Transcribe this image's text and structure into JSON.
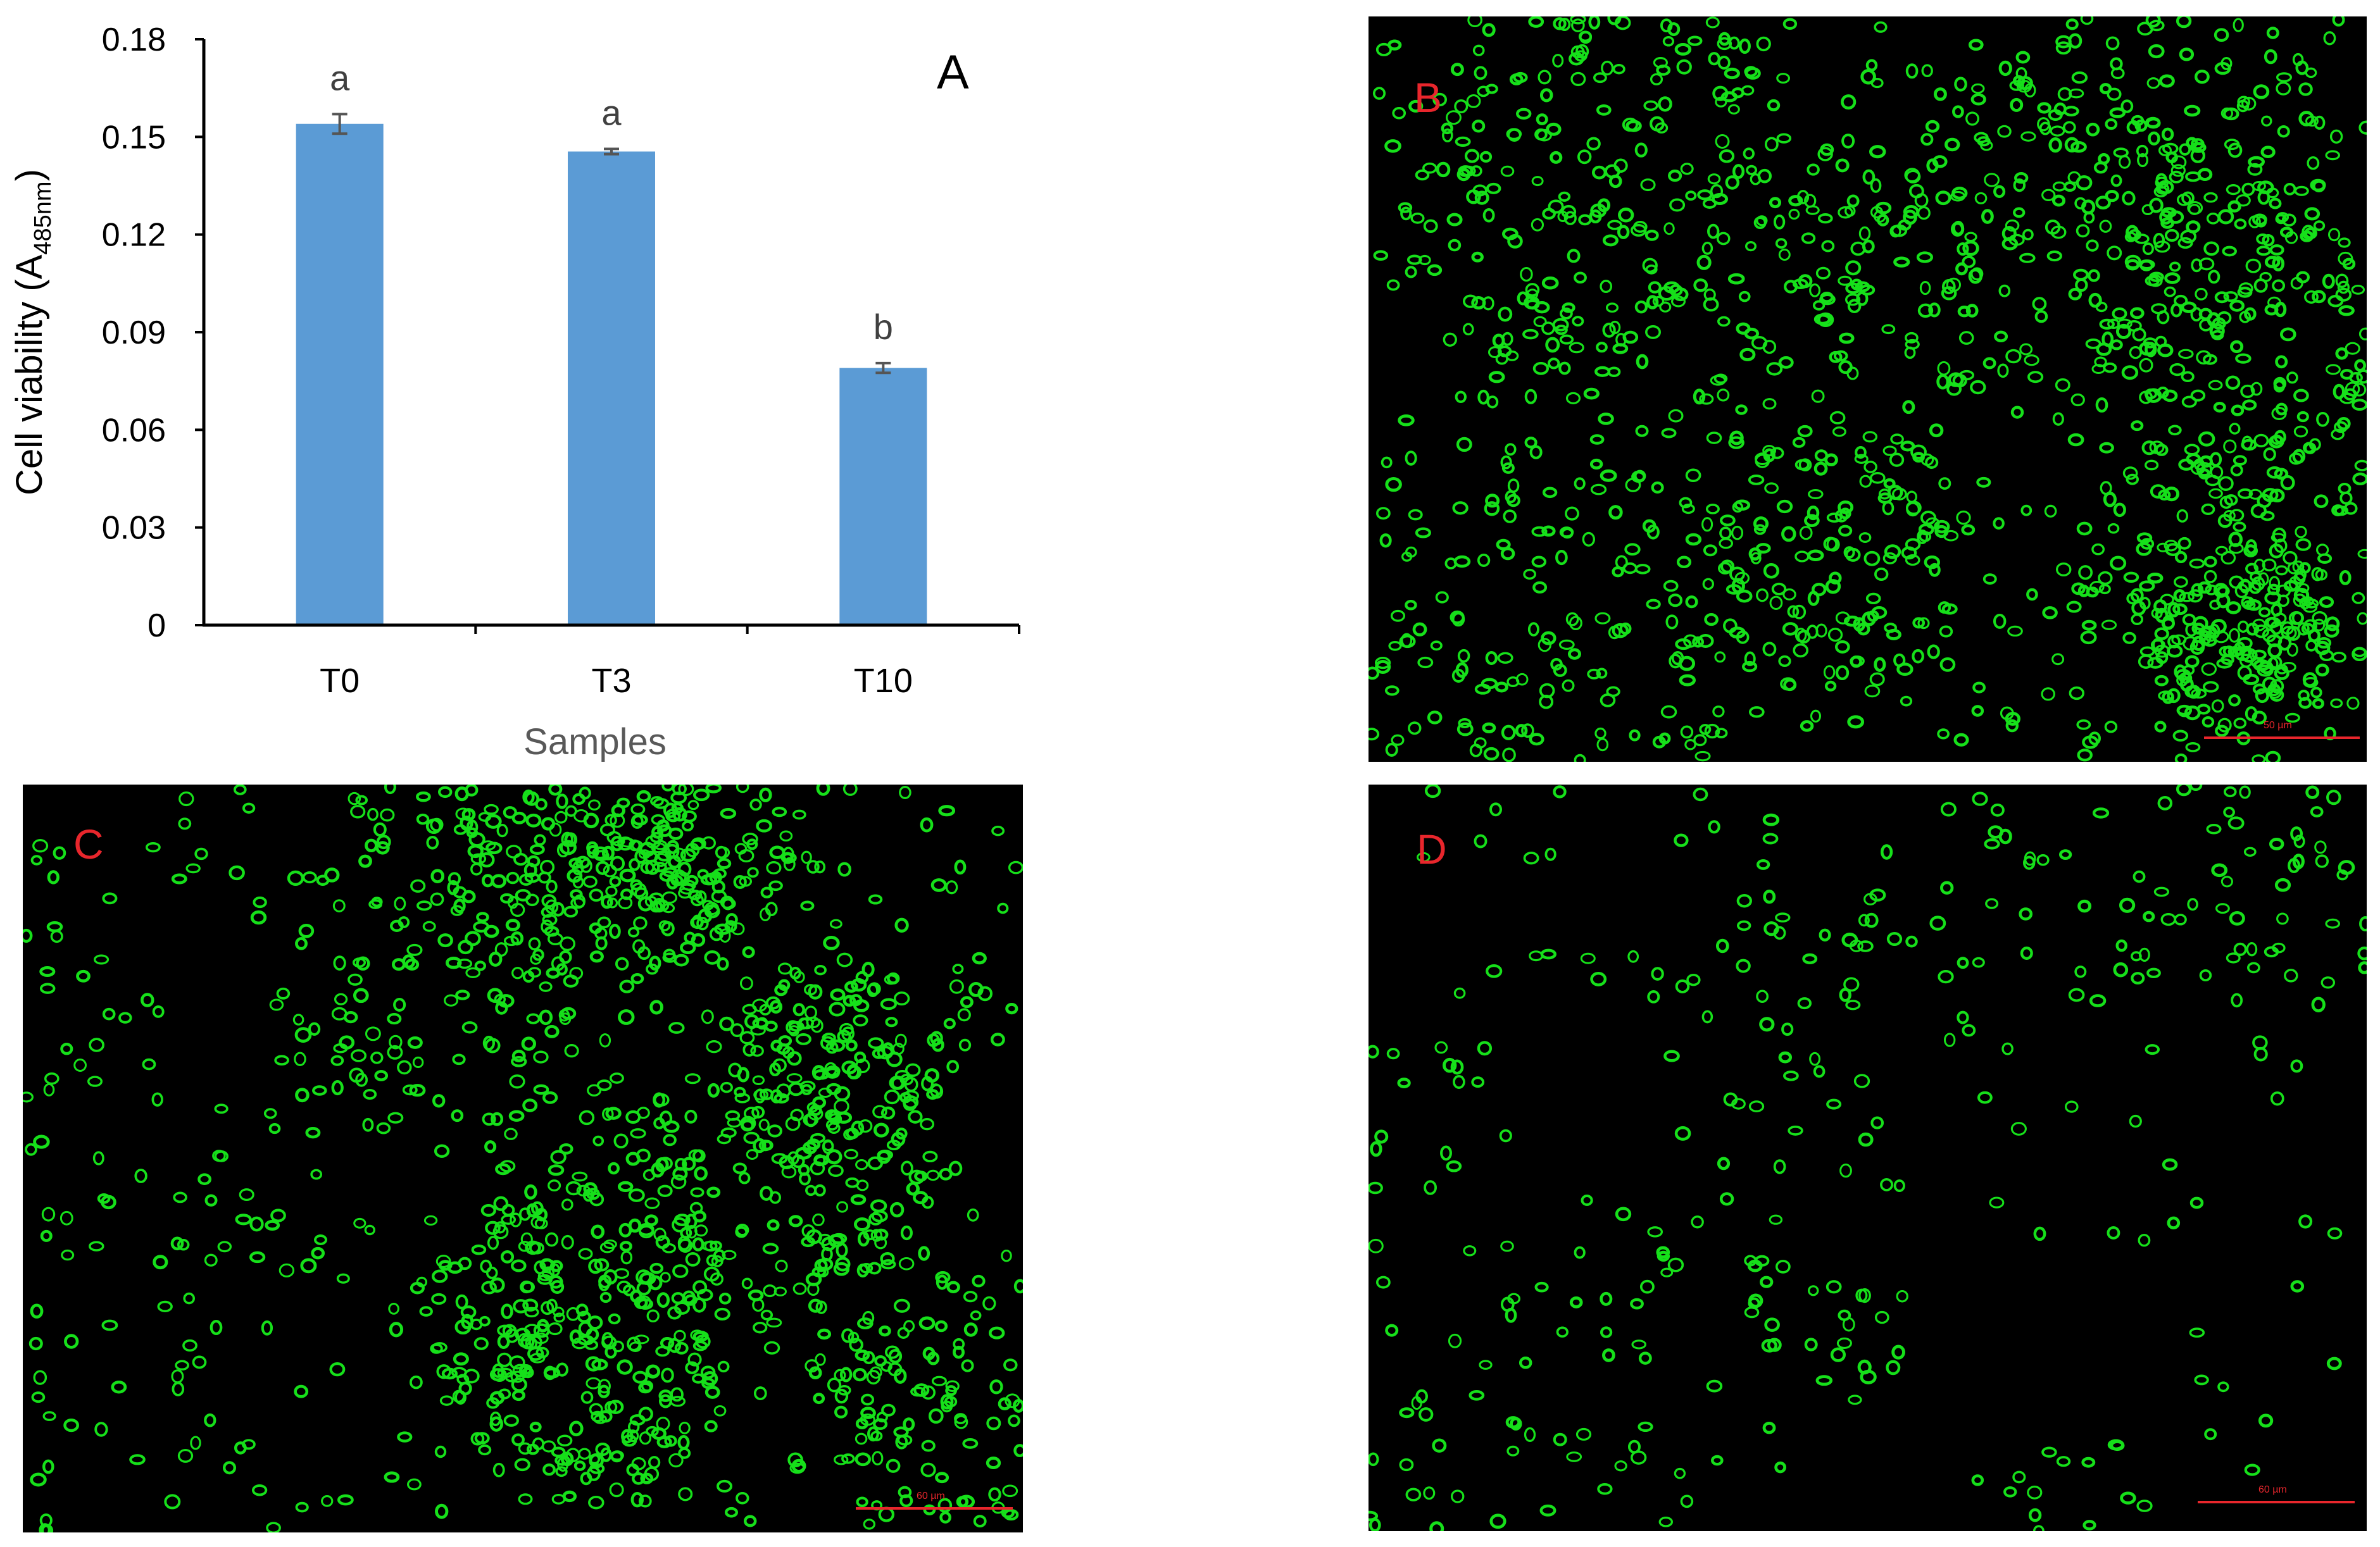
{
  "chart_data": {
    "type": "bar",
    "panel_label": "A",
    "categories": [
      "T0",
      "T3",
      "T10"
    ],
    "values": [
      0.154,
      0.1455,
      0.079
    ],
    "errors": [
      0.003,
      0.0008,
      0.0015
    ],
    "significance_letters": [
      "a",
      "a",
      "b"
    ],
    "xlabel": "Samples",
    "ylabel": "Cell viability (A",
    "ylabel_subscript": "485nm",
    "ylabel_suffix": ")",
    "ylim": [
      0,
      0.18
    ],
    "yticks": [
      "0",
      "0.03",
      "0.06",
      "0.09",
      "0.12",
      "0.15",
      "0.18"
    ],
    "ytick_values": [
      0,
      0.03,
      0.06,
      0.09,
      0.12,
      0.15,
      0.18
    ],
    "bar_color": "#5b9bd5",
    "grid": false,
    "legend": "none"
  },
  "micrographs": [
    {
      "label": "B",
      "scale": "50 µm",
      "density": "high",
      "cell_color": "#16e01a"
    },
    {
      "label": "C",
      "scale": "60 µm",
      "density": "high",
      "cell_color": "#16e01a"
    },
    {
      "label": "D",
      "scale": "60 µm",
      "density": "low",
      "cell_color": "#16e01a"
    }
  ],
  "colors": {
    "label_red": "#e8262c",
    "background": "#000000",
    "axis": "#000000",
    "text": "#404040"
  }
}
